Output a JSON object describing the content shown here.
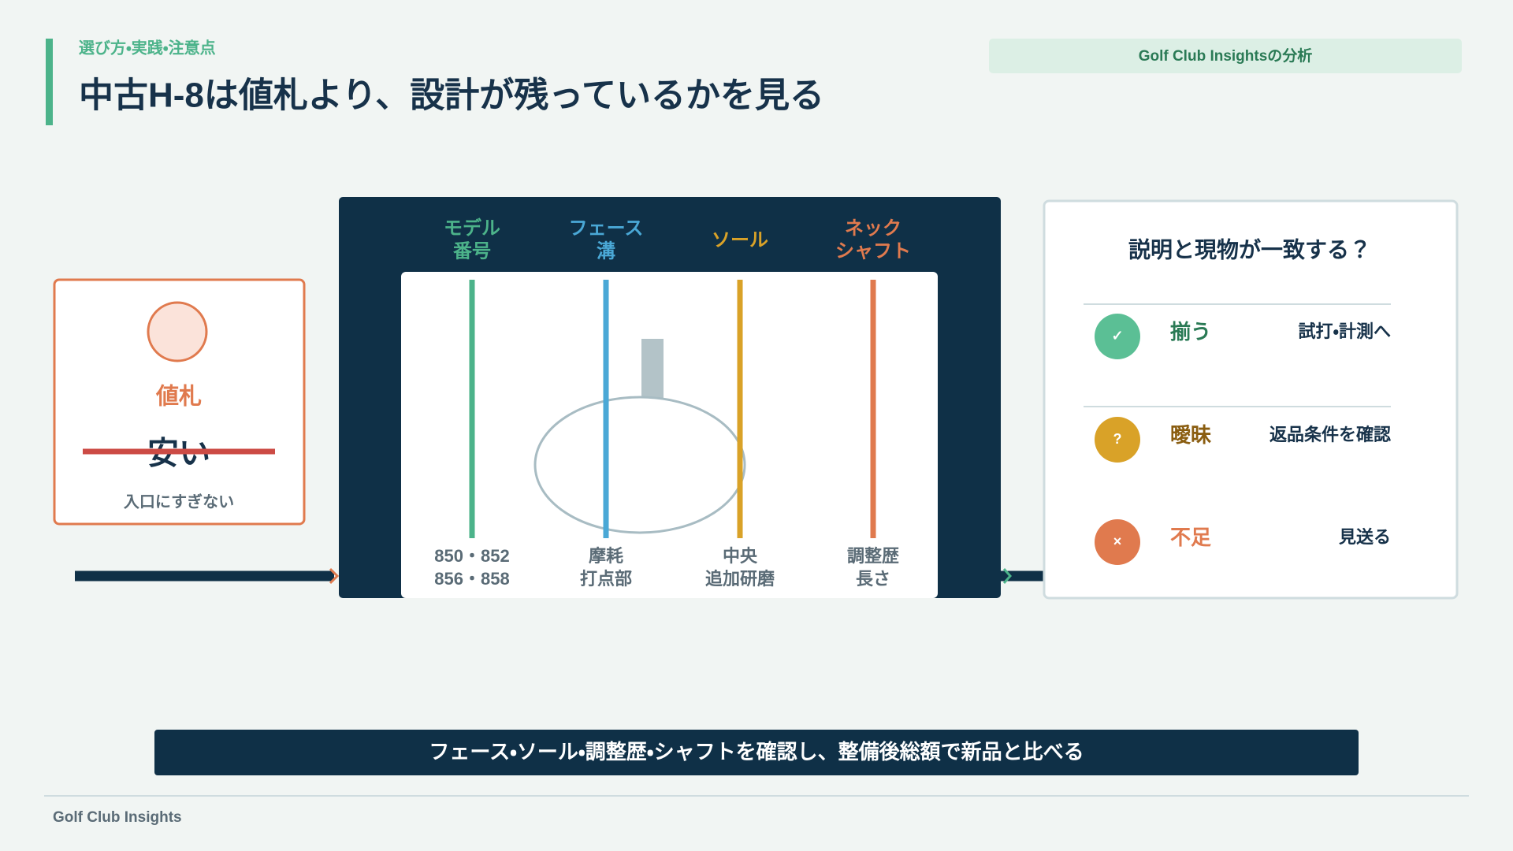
{
  "header": {
    "section": "選び方・実践・注意点",
    "title": "中古H-8は値札より、設計が残っているかを見る",
    "badge": "Golf Club Insightsの分析"
  },
  "left_card": {
    "label": "値札",
    "price": "安い",
    "note": "入口にすぎない"
  },
  "frame": {
    "columns": [
      {
        "title": [
          "モデル",
          "番号"
        ],
        "detail": [
          "850・852",
          "856・858"
        ]
      },
      {
        "title": [
          "フェース",
          "溝"
        ],
        "detail": [
          "摩耗",
          "打点部"
        ]
      },
      {
        "title": [
          "ソール"
        ],
        "detail": [
          "中央",
          "追加研磨"
        ]
      },
      {
        "title": [
          "ネック",
          "シャフト"
        ],
        "detail": [
          "調整歴",
          "長さ"
        ]
      }
    ]
  },
  "right_card": {
    "question": "説明と現物が一致する？",
    "rows": [
      {
        "icon": "✓",
        "label": "揃う",
        "action": "試打・計測へ"
      },
      {
        "icon": "?",
        "label": "曖昧",
        "action": "返品条件を確認"
      },
      {
        "icon": "×",
        "label": "不足",
        "action": "見送る"
      }
    ]
  },
  "banner": "フェース・ソール・調整歴・シャフトを確認し、整備後総額で新品と比べる",
  "footer": "Golf Club Insights"
}
